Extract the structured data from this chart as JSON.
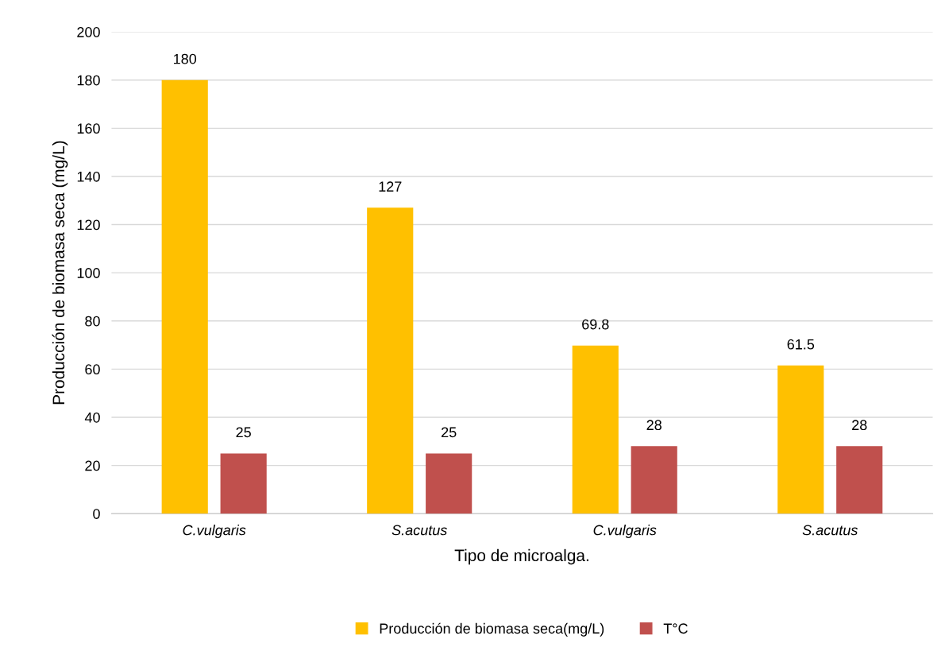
{
  "chart_data": {
    "type": "bar",
    "xlabel": "Tipo de microalga.",
    "ylabel": "Producción de biomasa seca (mg/L)",
    "categories": [
      "C.vulgaris",
      "S.acutus",
      "C.vulgaris",
      "S.acutus"
    ],
    "series": [
      {
        "name": "Producción de biomasa seca(mg/L)",
        "color": "#ffc000",
        "values": [
          180,
          127,
          69.8,
          61.5
        ]
      },
      {
        "name": "T°C",
        "color": "#c0504d",
        "values": [
          25,
          25,
          28,
          28
        ]
      }
    ],
    "ylim": [
      0,
      200
    ],
    "yticks": [
      0,
      20,
      40,
      60,
      80,
      100,
      120,
      140,
      160,
      180,
      200
    ],
    "grid": "y",
    "legend": "bottom",
    "data_labels": true
  }
}
